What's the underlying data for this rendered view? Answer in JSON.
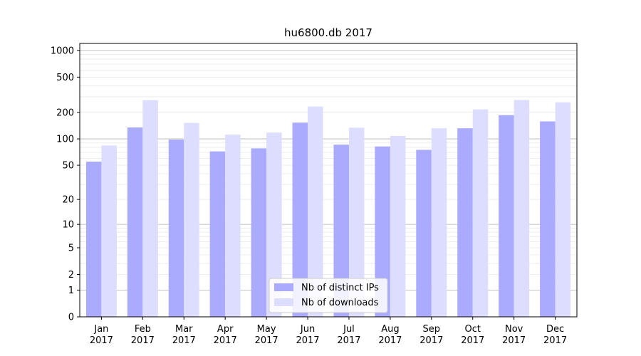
{
  "chart_data": {
    "type": "bar",
    "title": "hu6800.db 2017",
    "xlabel": "",
    "ylabel": "",
    "yscale": "log(1+y)",
    "ylim": [
      0,
      1200
    ],
    "yticks": [
      {
        "value": 0,
        "label": "0"
      },
      {
        "value": 1,
        "label": "1"
      },
      {
        "value": 2,
        "label": "2"
      },
      {
        "value": 5,
        "label": "5"
      },
      {
        "value": 10,
        "label": "10"
      },
      {
        "value": 20,
        "label": "20"
      },
      {
        "value": 50,
        "label": "50"
      },
      {
        "value": 100,
        "label": "100"
      },
      {
        "value": 200,
        "label": "200"
      },
      {
        "value": 500,
        "label": "500"
      },
      {
        "value": 1000,
        "label": "1000"
      }
    ],
    "major_grid": [
      1,
      10,
      100,
      1000
    ],
    "minor_grid": [
      2,
      3,
      4,
      5,
      6,
      7,
      8,
      9,
      20,
      30,
      40,
      50,
      60,
      70,
      80,
      90,
      200,
      300,
      400,
      500,
      600,
      700,
      800,
      900
    ],
    "categories": [
      {
        "month": "Jan",
        "year": "2017"
      },
      {
        "month": "Feb",
        "year": "2017"
      },
      {
        "month": "Mar",
        "year": "2017"
      },
      {
        "month": "Apr",
        "year": "2017"
      },
      {
        "month": "May",
        "year": "2017"
      },
      {
        "month": "Jun",
        "year": "2017"
      },
      {
        "month": "Jul",
        "year": "2017"
      },
      {
        "month": "Aug",
        "year": "2017"
      },
      {
        "month": "Sep",
        "year": "2017"
      },
      {
        "month": "Oct",
        "year": "2017"
      },
      {
        "month": "Nov",
        "year": "2017"
      },
      {
        "month": "Dec",
        "year": "2017"
      }
    ],
    "series": [
      {
        "name": "Nb of distinct IPs",
        "color": "#aaaaff",
        "values": [
          55,
          135,
          98,
          72,
          78,
          153,
          86,
          82,
          75,
          132,
          186,
          158
        ]
      },
      {
        "name": "Nb of downloads",
        "color": "#ddddff",
        "values": [
          84,
          275,
          152,
          112,
          118,
          233,
          134,
          108,
          132,
          216,
          276,
          260
        ]
      }
    ],
    "legend_position": "lower-center",
    "grid": true
  }
}
